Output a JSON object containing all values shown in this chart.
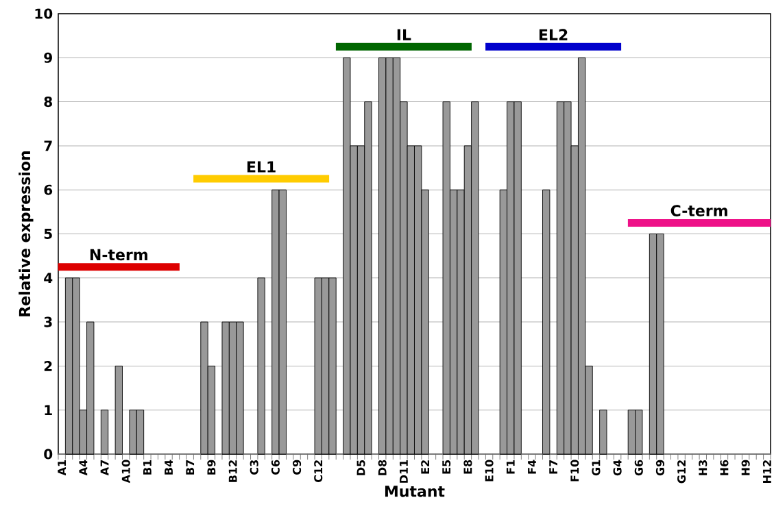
{
  "chart_data": {
    "type": "bar",
    "xlabel": "Mutant",
    "ylabel": "Relative expression",
    "categories": [
      "A1",
      null,
      null,
      "A4",
      null,
      null,
      "A7",
      null,
      null,
      "A10",
      null,
      null,
      "B1",
      null,
      null,
      "B4",
      null,
      null,
      "B7",
      null,
      null,
      "B9",
      null,
      null,
      "B12",
      null,
      null,
      "C3",
      null,
      null,
      "C6",
      null,
      null,
      "C9",
      null,
      null,
      "C12",
      null,
      null,
      null,
      null,
      null,
      "D5",
      null,
      null,
      "D8",
      null,
      null,
      "D11",
      null,
      null,
      "E2",
      null,
      null,
      "E5",
      null,
      null,
      "E8",
      null,
      null,
      "E10",
      null,
      null,
      "F1",
      null,
      null,
      "F4",
      null,
      null,
      "F7",
      null,
      null,
      "F10",
      null,
      null,
      "G1",
      null,
      null,
      "G4",
      null,
      null,
      "G6",
      null,
      null,
      "G9",
      null,
      null,
      "G12",
      null,
      null,
      "H3",
      null,
      null,
      "H6",
      null,
      null,
      "H9",
      null,
      null,
      "H12"
    ],
    "series": [
      {
        "color": "#999999",
        "values": [
          0,
          4,
          4,
          1,
          3,
          0,
          1,
          0,
          2,
          0,
          1,
          1,
          0,
          0,
          0,
          0,
          0,
          0,
          0,
          0,
          3,
          2,
          0,
          3,
          3,
          3,
          0,
          0,
          4,
          0,
          6,
          6,
          0,
          0,
          0,
          0,
          4,
          4,
          4,
          0,
          9,
          7,
          7,
          8,
          0,
          9,
          9,
          9,
          8,
          7,
          7,
          6,
          0,
          0,
          8,
          6,
          6,
          7,
          8,
          0,
          0,
          0,
          6,
          8,
          8,
          0,
          0,
          0,
          6,
          0,
          8,
          8,
          7,
          9,
          2,
          0,
          1,
          0,
          0,
          0,
          1,
          1,
          0,
          5,
          5,
          0,
          0,
          0,
          0,
          0,
          0,
          0,
          0,
          0,
          0,
          0,
          0,
          0,
          0,
          0
        ]
      },
      {
        "type": "line",
        "name": "N-term",
        "color": "#dd0000",
        "values": [
          4.25,
          4.25,
          4.25,
          4.25,
          4.25,
          4.25,
          4.25,
          4.25,
          4.25,
          4.25,
          4.25,
          4.25,
          4.25,
          4.25,
          4.25,
          4.25,
          4.25,
          null,
          null,
          null,
          null,
          null,
          null,
          null,
          null,
          null,
          null,
          null,
          null,
          null,
          null,
          null,
          null,
          null,
          null,
          null,
          null,
          null,
          null,
          null,
          null,
          null,
          null,
          null,
          null,
          null,
          null,
          null,
          null,
          null,
          null,
          null,
          null,
          null,
          null,
          null,
          null,
          null,
          null,
          null,
          null,
          null,
          null,
          null,
          null,
          null,
          null,
          null,
          null,
          null,
          null,
          null,
          null,
          null,
          null,
          null,
          null,
          null,
          null,
          null,
          null,
          null,
          null,
          null,
          null,
          null,
          null,
          null,
          null,
          null,
          null,
          null,
          null,
          null,
          null,
          null,
          null,
          null,
          null,
          null
        ]
      },
      {
        "type": "line",
        "name": "EL1",
        "color": "#ffcc00",
        "values": [
          null,
          null,
          null,
          null,
          null,
          null,
          null,
          null,
          null,
          null,
          null,
          null,
          null,
          null,
          null,
          null,
          null,
          null,
          null,
          6.25,
          6.25,
          6.25,
          6.25,
          6.25,
          6.25,
          6.25,
          6.25,
          6.25,
          6.25,
          6.25,
          6.25,
          6.25,
          6.25,
          6.25,
          6.25,
          6.25,
          6.25,
          6.25,
          null,
          null,
          null,
          null,
          null,
          null,
          null,
          null,
          null,
          null,
          null,
          null,
          null,
          null,
          null,
          null,
          null,
          null,
          null,
          null,
          null,
          null,
          null,
          null,
          null,
          null,
          null,
          null,
          null,
          null,
          null,
          null,
          null,
          null,
          null,
          null,
          null,
          null,
          null,
          null,
          null,
          null,
          null,
          null,
          null,
          null,
          null,
          null,
          null,
          null,
          null,
          null,
          null,
          null,
          null,
          null,
          null,
          null,
          null,
          null,
          null,
          null
        ]
      },
      {
        "type": "line",
        "name": "IL",
        "color": "#006600",
        "values": [
          null,
          null,
          null,
          null,
          null,
          null,
          null,
          null,
          null,
          null,
          null,
          null,
          null,
          null,
          null,
          null,
          null,
          null,
          null,
          null,
          null,
          null,
          null,
          null,
          null,
          null,
          null,
          null,
          null,
          null,
          null,
          null,
          null,
          null,
          null,
          null,
          null,
          null,
          null,
          9.25,
          9.25,
          9.25,
          9.25,
          9.25,
          9.25,
          9.25,
          9.25,
          9.25,
          9.25,
          9.25,
          9.25,
          9.25,
          9.25,
          9.25,
          9.25,
          9.25,
          9.25,
          9.25,
          null,
          null,
          null,
          null,
          null,
          null,
          null,
          null,
          null,
          null,
          null,
          null,
          null,
          null,
          null,
          null,
          null,
          null,
          null,
          null,
          null,
          null,
          null,
          null,
          null,
          null,
          null,
          null,
          null,
          null,
          null,
          null,
          null,
          null,
          null,
          null,
          null,
          null,
          null,
          null,
          null,
          null
        ]
      },
      {
        "type": "line",
        "name": "EL2",
        "color": "#0000cc",
        "values": [
          null,
          null,
          null,
          null,
          null,
          null,
          null,
          null,
          null,
          null,
          null,
          null,
          null,
          null,
          null,
          null,
          null,
          null,
          null,
          null,
          null,
          null,
          null,
          null,
          null,
          null,
          null,
          null,
          null,
          null,
          null,
          null,
          null,
          null,
          null,
          null,
          null,
          null,
          null,
          null,
          null,
          null,
          null,
          null,
          null,
          null,
          null,
          null,
          null,
          null,
          null,
          null,
          null,
          null,
          null,
          null,
          null,
          null,
          null,
          null,
          9.25,
          9.25,
          9.25,
          9.25,
          9.25,
          9.25,
          9.25,
          9.25,
          9.25,
          9.25,
          9.25,
          9.25,
          9.25,
          9.25,
          9.25,
          9.25,
          9.25,
          9.25,
          9.25,
          null,
          null,
          null,
          null,
          null,
          null,
          null,
          null,
          null,
          null,
          null,
          null,
          null,
          null,
          null,
          null,
          null,
          null,
          null,
          null,
          null
        ]
      },
      {
        "type": "line",
        "name": "C-term",
        "color": "#ee1188",
        "values": [
          null,
          null,
          null,
          null,
          null,
          null,
          null,
          null,
          null,
          null,
          null,
          null,
          null,
          null,
          null,
          null,
          null,
          null,
          null,
          null,
          null,
          null,
          null,
          null,
          null,
          null,
          null,
          null,
          null,
          null,
          null,
          null,
          null,
          null,
          null,
          null,
          null,
          null,
          null,
          null,
          null,
          null,
          null,
          null,
          null,
          null,
          null,
          null,
          null,
          null,
          null,
          null,
          null,
          null,
          null,
          null,
          null,
          null,
          null,
          null,
          null,
          null,
          null,
          null,
          null,
          null,
          null,
          null,
          null,
          null,
          null,
          null,
          null,
          null,
          null,
          null,
          null,
          null,
          null,
          null,
          5.25,
          5.25,
          5.25,
          5.25,
          5.25,
          5.25,
          5.25,
          5.25,
          5.25,
          5.25,
          5.25,
          5.25,
          5.25,
          5.25,
          5.25,
          5.25,
          5.25,
          5.25,
          5.25,
          5.25
        ]
      }
    ],
    "ylim": [
      0,
      10
    ],
    "yticks": [
      0,
      1,
      2,
      3,
      4,
      5,
      6,
      7,
      8,
      9,
      10
    ],
    "grid": "y"
  }
}
